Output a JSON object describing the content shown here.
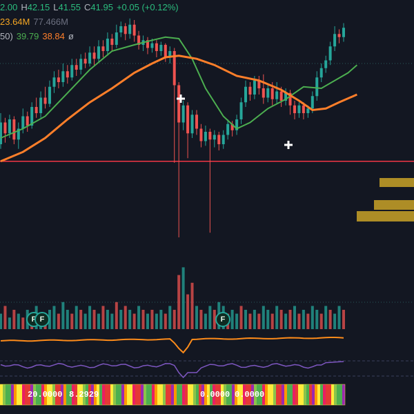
{
  "legend": {
    "open_value": "2.00",
    "high_key": "H",
    "high_value": "42.15",
    "low_key": "L",
    "low_value": "41.55",
    "close_key": "C",
    "close_value": "41.95",
    "change": "+0.05 (+0.12%)",
    "volume_value": "23.64M",
    "volume_avg": "77.466M",
    "ma_prefix": "50)",
    "ma_fast": "39.79",
    "ma_slow": "38.84",
    "ma_suffix": "ø"
  },
  "badges": [
    "F",
    "F",
    "F"
  ],
  "strip": {
    "value_a": "20.0000",
    "value_b": "8.2929",
    "value_c": "0.0000",
    "value_d": "0.0000"
  },
  "colors": {
    "background": "#131722",
    "candle_up": "#26a69a",
    "candle_down": "#ef5350",
    "ma_fast": "#4caf50",
    "ma_slow": "#ff7f2a",
    "support_line": "#f23645",
    "volume_profile": "#c9a227",
    "rsi_line": "#7e57c2",
    "lower_line": "#ff8c1a"
  },
  "chart_data": {
    "type": "candlestick",
    "ylim": [
      30,
      46
    ],
    "price_line": 36.5,
    "candles": [
      [
        37.6,
        39.0,
        39.6,
        37.3
      ],
      [
        39.0,
        38.3,
        39.3,
        37.7
      ],
      [
        38.3,
        39.2,
        39.5,
        38.0
      ],
      [
        39.2,
        37.9,
        39.4,
        37.6
      ],
      [
        37.9,
        38.6,
        39.0,
        37.3
      ],
      [
        38.6,
        39.4,
        39.9,
        38.3
      ],
      [
        39.4,
        38.8,
        39.7,
        38.4
      ],
      [
        38.8,
        40.0,
        40.3,
        38.6
      ],
      [
        40.0,
        39.6,
        40.6,
        39.3
      ],
      [
        39.6,
        40.6,
        41.0,
        39.3
      ],
      [
        40.6,
        40.2,
        41.3,
        39.9
      ],
      [
        40.2,
        41.3,
        41.7,
        40.0
      ],
      [
        41.3,
        41.9,
        42.3,
        40.9
      ],
      [
        41.9,
        41.6,
        42.4,
        41.2
      ],
      [
        41.6,
        42.3,
        42.8,
        41.3
      ],
      [
        42.3,
        41.9,
        42.7,
        41.5
      ],
      [
        41.9,
        42.7,
        43.1,
        41.7
      ],
      [
        42.7,
        42.4,
        43.1,
        42.0
      ],
      [
        42.4,
        43.1,
        43.4,
        42.1
      ],
      [
        43.1,
        42.8,
        43.5,
        42.5
      ],
      [
        42.8,
        43.5,
        43.9,
        42.6
      ],
      [
        43.5,
        43.1,
        43.9,
        42.7
      ],
      [
        43.1,
        43.9,
        44.3,
        42.9
      ],
      [
        43.9,
        43.6,
        44.3,
        43.2
      ],
      [
        43.6,
        44.4,
        44.8,
        43.3
      ],
      [
        44.4,
        44.0,
        44.7,
        43.6
      ],
      [
        44.0,
        44.8,
        45.3,
        43.8
      ],
      [
        44.8,
        45.2,
        45.5,
        44.5
      ],
      [
        45.2,
        44.7,
        45.4,
        44.3
      ],
      [
        44.7,
        45.3,
        45.7,
        44.4
      ],
      [
        45.3,
        44.6,
        45.6,
        44.2
      ],
      [
        44.6,
        44.0,
        44.9,
        43.7
      ],
      [
        44.0,
        44.3,
        44.6,
        43.6
      ],
      [
        44.3,
        43.8,
        44.5,
        43.4
      ],
      [
        43.8,
        44.1,
        44.4,
        43.5
      ],
      [
        44.1,
        43.6,
        44.3,
        43.2
      ],
      [
        43.6,
        44.0,
        44.2,
        43.3
      ],
      [
        44.0,
        43.2,
        44.1,
        42.9
      ],
      [
        43.2,
        43.6,
        43.9,
        42.8
      ],
      [
        43.6,
        41.4,
        43.8,
        36.4
      ],
      [
        41.4,
        39.0,
        41.6,
        31.6
      ],
      [
        39.0,
        40.1,
        40.4,
        38.5
      ],
      [
        40.1,
        38.3,
        40.3,
        36.7
      ],
      [
        38.3,
        39.5,
        39.8,
        38.0
      ],
      [
        39.5,
        38.6,
        39.8,
        38.2
      ],
      [
        38.6,
        37.8,
        38.9,
        37.4
      ],
      [
        37.8,
        38.4,
        38.8,
        37.5
      ],
      [
        38.4,
        37.9,
        38.6,
        31.9
      ],
      [
        37.9,
        38.2,
        38.5,
        37.4
      ],
      [
        38.2,
        37.6,
        38.4,
        37.2
      ],
      [
        37.6,
        38.2,
        38.5,
        37.3
      ],
      [
        38.2,
        38.9,
        39.2,
        37.9
      ],
      [
        38.9,
        38.5,
        39.1,
        38.1
      ],
      [
        38.5,
        39.2,
        39.5,
        38.2
      ],
      [
        39.2,
        40.3,
        40.6,
        38.9
      ],
      [
        40.3,
        41.3,
        41.7,
        40.0
      ],
      [
        41.3,
        40.8,
        41.6,
        40.4
      ],
      [
        40.8,
        41.7,
        42.0,
        40.5
      ],
      [
        41.7,
        41.2,
        42.0,
        40.8
      ],
      [
        41.2,
        40.6,
        42.1,
        40.2
      ],
      [
        40.6,
        41.2,
        41.5,
        40.3
      ],
      [
        41.2,
        40.5,
        41.6,
        40.1
      ],
      [
        40.5,
        41.0,
        41.6,
        40.2
      ],
      [
        41.0,
        40.4,
        41.3,
        40.0
      ],
      [
        40.4,
        40.9,
        41.2,
        40.1
      ],
      [
        40.9,
        40.1,
        41.1,
        39.5
      ],
      [
        40.1,
        39.6,
        40.4,
        39.2
      ],
      [
        39.6,
        40.1,
        40.3,
        39.3
      ],
      [
        40.1,
        39.6,
        40.3,
        39.2
      ],
      [
        39.6,
        39.9,
        40.1,
        39.3
      ],
      [
        39.9,
        40.7,
        41.0,
        39.6
      ],
      [
        40.7,
        41.9,
        42.3,
        40.4
      ],
      [
        41.9,
        42.5,
        42.8,
        41.6
      ],
      [
        42.5,
        43.0,
        43.3,
        42.2
      ],
      [
        43.0,
        43.9,
        44.2,
        42.7
      ],
      [
        43.9,
        44.7,
        45.2,
        43.6
      ],
      [
        44.7,
        44.5,
        45.0,
        44.1
      ],
      [
        44.5,
        45.1,
        45.4,
        44.2
      ]
    ],
    "ma_fast": [
      [
        0,
        38.0
      ],
      [
        5,
        38.6
      ],
      [
        10,
        39.4
      ],
      [
        15,
        40.9
      ],
      [
        20,
        42.4
      ],
      [
        25,
        43.6
      ],
      [
        30,
        44.0
      ],
      [
        34,
        44.3
      ],
      [
        37,
        44.5
      ],
      [
        40,
        44.4
      ],
      [
        43,
        43.1
      ],
      [
        46,
        41.2
      ],
      [
        50,
        39.4
      ],
      [
        53,
        38.6
      ],
      [
        56,
        39.0
      ],
      [
        60,
        39.9
      ],
      [
        64,
        40.5
      ],
      [
        68,
        41.3
      ],
      [
        72,
        41.2
      ],
      [
        75,
        41.7
      ],
      [
        78,
        42.2
      ],
      [
        80,
        42.7
      ]
    ],
    "ma_slow": [
      [
        0,
        36.5
      ],
      [
        5,
        37.1
      ],
      [
        10,
        38.0
      ],
      [
        15,
        39.2
      ],
      [
        20,
        40.3
      ],
      [
        25,
        41.2
      ],
      [
        30,
        42.2
      ],
      [
        34,
        42.8
      ],
      [
        37,
        43.2
      ],
      [
        40,
        43.3
      ],
      [
        44,
        43.1
      ],
      [
        48,
        42.7
      ],
      [
        53,
        42.0
      ],
      [
        58,
        41.7
      ],
      [
        63,
        41.1
      ],
      [
        67,
        40.4
      ],
      [
        70,
        39.8
      ],
      [
        73,
        39.9
      ],
      [
        76,
        40.3
      ],
      [
        80,
        40.8
      ]
    ],
    "volume": [
      [
        4,
        1
      ],
      [
        6,
        0
      ],
      [
        3,
        1
      ],
      [
        5,
        0
      ],
      [
        4,
        1
      ],
      [
        3,
        0
      ],
      [
        5,
        1
      ],
      [
        4,
        0
      ],
      [
        6,
        1
      ],
      [
        4,
        1
      ],
      [
        3,
        0
      ],
      [
        5,
        1
      ],
      [
        6,
        1
      ],
      [
        4,
        0
      ],
      [
        7,
        1
      ],
      [
        5,
        1
      ],
      [
        4,
        0
      ],
      [
        6,
        1
      ],
      [
        5,
        0
      ],
      [
        4,
        1
      ],
      [
        6,
        1
      ],
      [
        5,
        0
      ],
      [
        4,
        1
      ],
      [
        6,
        0
      ],
      [
        5,
        1
      ],
      [
        4,
        1
      ],
      [
        7,
        0
      ],
      [
        5,
        1
      ],
      [
        6,
        0
      ],
      [
        5,
        1
      ],
      [
        4,
        0
      ],
      [
        6,
        1
      ],
      [
        5,
        0
      ],
      [
        4,
        1
      ],
      [
        5,
        0
      ],
      [
        4,
        1
      ],
      [
        5,
        1
      ],
      [
        4,
        0
      ],
      [
        6,
        1
      ],
      [
        5,
        0
      ],
      [
        14,
        0
      ],
      [
        16,
        1
      ],
      [
        9,
        0
      ],
      [
        12,
        0
      ],
      [
        6,
        1
      ],
      [
        5,
        0
      ],
      [
        4,
        1
      ],
      [
        6,
        1
      ],
      [
        5,
        0
      ],
      [
        7,
        1
      ],
      [
        6,
        1
      ],
      [
        4,
        0
      ],
      [
        5,
        1
      ],
      [
        4,
        1
      ],
      [
        6,
        0
      ],
      [
        5,
        1
      ],
      [
        4,
        0
      ],
      [
        5,
        1
      ],
      [
        4,
        0
      ],
      [
        6,
        1
      ],
      [
        5,
        1
      ],
      [
        4,
        0
      ],
      [
        6,
        1
      ],
      [
        5,
        0
      ],
      [
        4,
        1
      ],
      [
        5,
        0
      ],
      [
        6,
        1
      ],
      [
        4,
        0
      ],
      [
        5,
        1
      ],
      [
        4,
        0
      ],
      [
        6,
        1
      ],
      [
        5,
        1
      ],
      [
        4,
        0
      ],
      [
        6,
        1
      ],
      [
        5,
        0
      ],
      [
        4,
        1
      ],
      [
        6,
        1
      ],
      [
        5,
        0
      ]
    ]
  }
}
